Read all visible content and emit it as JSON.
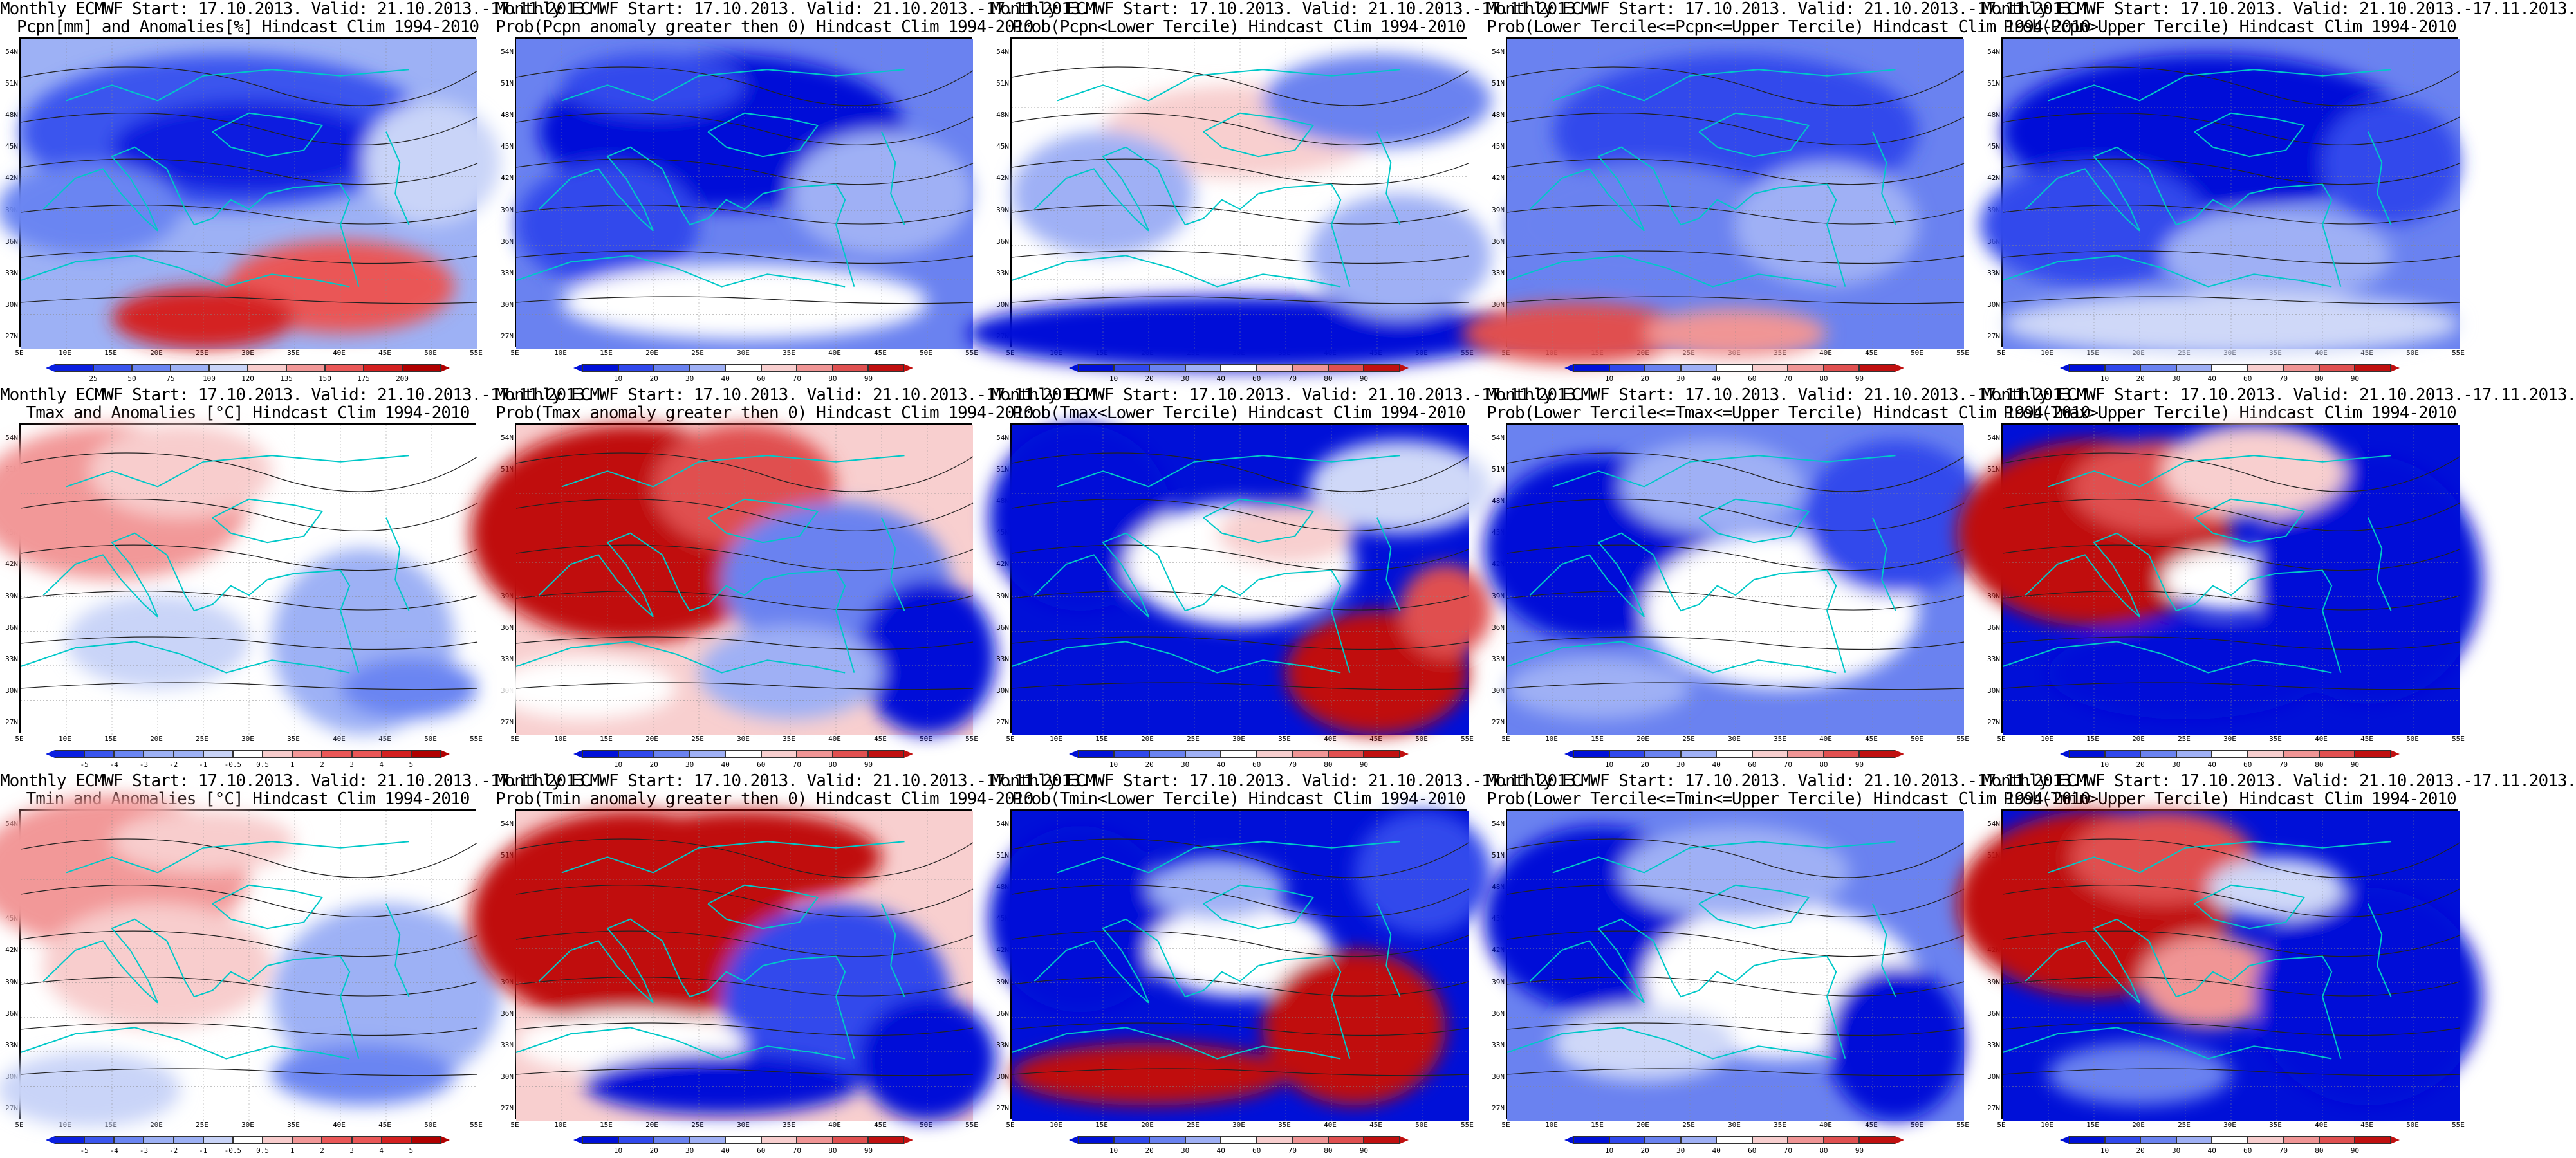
{
  "colors": {
    "anomaly_scale": [
      "#0a1fe0",
      "#3a55ee",
      "#6a85f2",
      "#9db1f5",
      "#c9d4f8",
      "#ffffff",
      "#f8cdcd",
      "#f29898",
      "#ea5757",
      "#d42020",
      "#b00000"
    ],
    "prob_scale": [
      "#0010d8",
      "#3048ec",
      "#6a82f0",
      "#9fb0f5",
      "#cfd8f8",
      "#ffffff",
      "#f8cfcf",
      "#f09595",
      "#e05050",
      "#c01010"
    ],
    "coastline": "#00c8c8",
    "contour": "#222222"
  },
  "axes": {
    "lat_labels": [
      "54N",
      "51N",
      "48N",
      "45N",
      "42N",
      "39N",
      "36N",
      "33N",
      "30N",
      "27N"
    ],
    "lon_labels": [
      "5E",
      "10E",
      "15E",
      "20E",
      "25E",
      "30E",
      "35E",
      "40E",
      "45E",
      "50E",
      "55E"
    ]
  },
  "panels": [
    {
      "title1": "Monthly ECMWF Start: 17.10.2013. Valid: 21.10.2013.-17.11.2013.",
      "title2": "Pcpn[mm] and Anomalies[%] Hindcast Clim 1994-2010",
      "kind": "pcpn_anom",
      "scale": "anomaly",
      "ticks": [
        "25",
        "50",
        "75",
        "100",
        "120",
        "135",
        "150",
        "175",
        "200"
      ]
    },
    {
      "title1": "Monthly ECMWF Start: 17.10.2013. Valid: 21.10.2013.-17.11.2013.",
      "title2": "Prob(Pcpn anomaly greater then 0) Hindcast Clim 1994-2010",
      "kind": "pcpn_pos",
      "scale": "prob",
      "ticks": [
        "10",
        "20",
        "30",
        "40",
        "60",
        "70",
        "80",
        "90"
      ]
    },
    {
      "title1": "Monthly ECMWF Start: 17.10.2013. Valid: 21.10.2013.-17.11.2013.",
      "title2": "Prob(Pcpn<Lower Tercile) Hindcast Clim 1994-2010",
      "kind": "pcpn_lower",
      "scale": "prob",
      "ticks": [
        "10",
        "20",
        "30",
        "40",
        "60",
        "70",
        "80",
        "90"
      ]
    },
    {
      "title1": "Monthly ECMWF Start: 17.10.2013. Valid: 21.10.2013.-17.11.2013.",
      "title2": "Prob(Lower Tercile<=Pcpn<=Upper Tercile) Hindcast Clim 1994-2010",
      "kind": "pcpn_middle",
      "scale": "prob",
      "ticks": [
        "10",
        "20",
        "30",
        "40",
        "60",
        "70",
        "80",
        "90"
      ]
    },
    {
      "title1": "Monthly ECMWF Start: 17.10.2013. Valid: 21.10.2013.-17.11.2013.",
      "title2": "Prob(Pcpn>Upper Tercile) Hindcast Clim 1994-2010",
      "kind": "pcpn_upper",
      "scale": "prob",
      "ticks": [
        "10",
        "20",
        "30",
        "40",
        "60",
        "70",
        "80",
        "90"
      ]
    },
    {
      "title1": "Monthly ECMWF Start: 17.10.2013. Valid: 21.10.2013.-17.11.2013.",
      "title2": "Tmax and Anomalies [°C] Hindcast Clim 1994-2010",
      "kind": "tmax_anom",
      "scale": "anomaly",
      "ticks": [
        "-5",
        "-4",
        "-3",
        "-2",
        "-1",
        "-0.5",
        "0.5",
        "1",
        "2",
        "3",
        "4",
        "5"
      ]
    },
    {
      "title1": "Monthly ECMWF Start: 17.10.2013. Valid: 21.10.2013.-17.11.2013.",
      "title2": "Prob(Tmax anomaly greater then 0) Hindcast Clim 1994-2010",
      "kind": "tmax_pos",
      "scale": "prob",
      "ticks": [
        "10",
        "20",
        "30",
        "40",
        "60",
        "70",
        "80",
        "90"
      ]
    },
    {
      "title1": "Monthly ECMWF Start: 17.10.2013. Valid: 21.10.2013.-17.11.2013.",
      "title2": "Prob(Tmax<Lower Tercile) Hindcast Clim 1994-2010",
      "kind": "tmax_lower",
      "scale": "prob",
      "ticks": [
        "10",
        "20",
        "30",
        "40",
        "60",
        "70",
        "80",
        "90"
      ]
    },
    {
      "title1": "Monthly ECMWF Start: 17.10.2013. Valid: 21.10.2013.-17.11.2013.",
      "title2": "Prob(Lower Tercile<=Tmax<=Upper Tercile) Hindcast Clim 1994-2010",
      "kind": "tmax_middle",
      "scale": "prob",
      "ticks": [
        "10",
        "20",
        "30",
        "40",
        "60",
        "70",
        "80",
        "90"
      ]
    },
    {
      "title1": "Monthly ECMWF Start: 17.10.2013. Valid: 21.10.2013.-17.11.2013.",
      "title2": "Prob(Tmax>Upper Tercile) Hindcast Clim 1994-2010",
      "kind": "tmax_upper",
      "scale": "prob",
      "ticks": [
        "10",
        "20",
        "30",
        "40",
        "60",
        "70",
        "80",
        "90"
      ]
    },
    {
      "title1": "Monthly ECMWF Start: 17.10.2013. Valid: 21.10.2013.-17.11.2013.",
      "title2": "Tmin and Anomalies [°C] Hindcast Clim 1994-2010",
      "kind": "tmin_anom",
      "scale": "anomaly",
      "ticks": [
        "-5",
        "-4",
        "-3",
        "-2",
        "-1",
        "-0.5",
        "0.5",
        "1",
        "2",
        "3",
        "4",
        "5"
      ]
    },
    {
      "title1": "Monthly ECMWF Start: 17.10.2013. Valid: 21.10.2013.-17.11.2013.",
      "title2": "Prob(Tmin anomaly greater then 0) Hindcast Clim 1994-2010",
      "kind": "tmin_pos",
      "scale": "prob",
      "ticks": [
        "10",
        "20",
        "30",
        "40",
        "60",
        "70",
        "80",
        "90"
      ]
    },
    {
      "title1": "Monthly ECMWF Start: 17.10.2013. Valid: 21.10.2013.-17.11.2013.",
      "title2": "Prob(Tmin<Lower Tercile) Hindcast Clim 1994-2010",
      "kind": "tmin_lower",
      "scale": "prob",
      "ticks": [
        "10",
        "20",
        "30",
        "40",
        "60",
        "70",
        "80",
        "90"
      ]
    },
    {
      "title1": "Monthly ECMWF Start: 17.10.2013. Valid: 21.10.2013.-17.11.2013.",
      "title2": "Prob(Lower Tercile<=Tmin<=Upper Tercile) Hindcast Clim 1994-2010",
      "kind": "tmin_middle",
      "scale": "prob",
      "ticks": [
        "10",
        "20",
        "30",
        "40",
        "60",
        "70",
        "80",
        "90"
      ]
    },
    {
      "title1": "Monthly ECMWF Start: 17.10.2013. Valid: 21.10.2013.-17.11.2013.",
      "title2": "Prob(Tmin>Upper Tercile) Hindcast Clim 1994-2010",
      "kind": "tmin_upper",
      "scale": "prob",
      "ticks": [
        "10",
        "20",
        "30",
        "40",
        "60",
        "70",
        "80",
        "90"
      ]
    }
  ]
}
